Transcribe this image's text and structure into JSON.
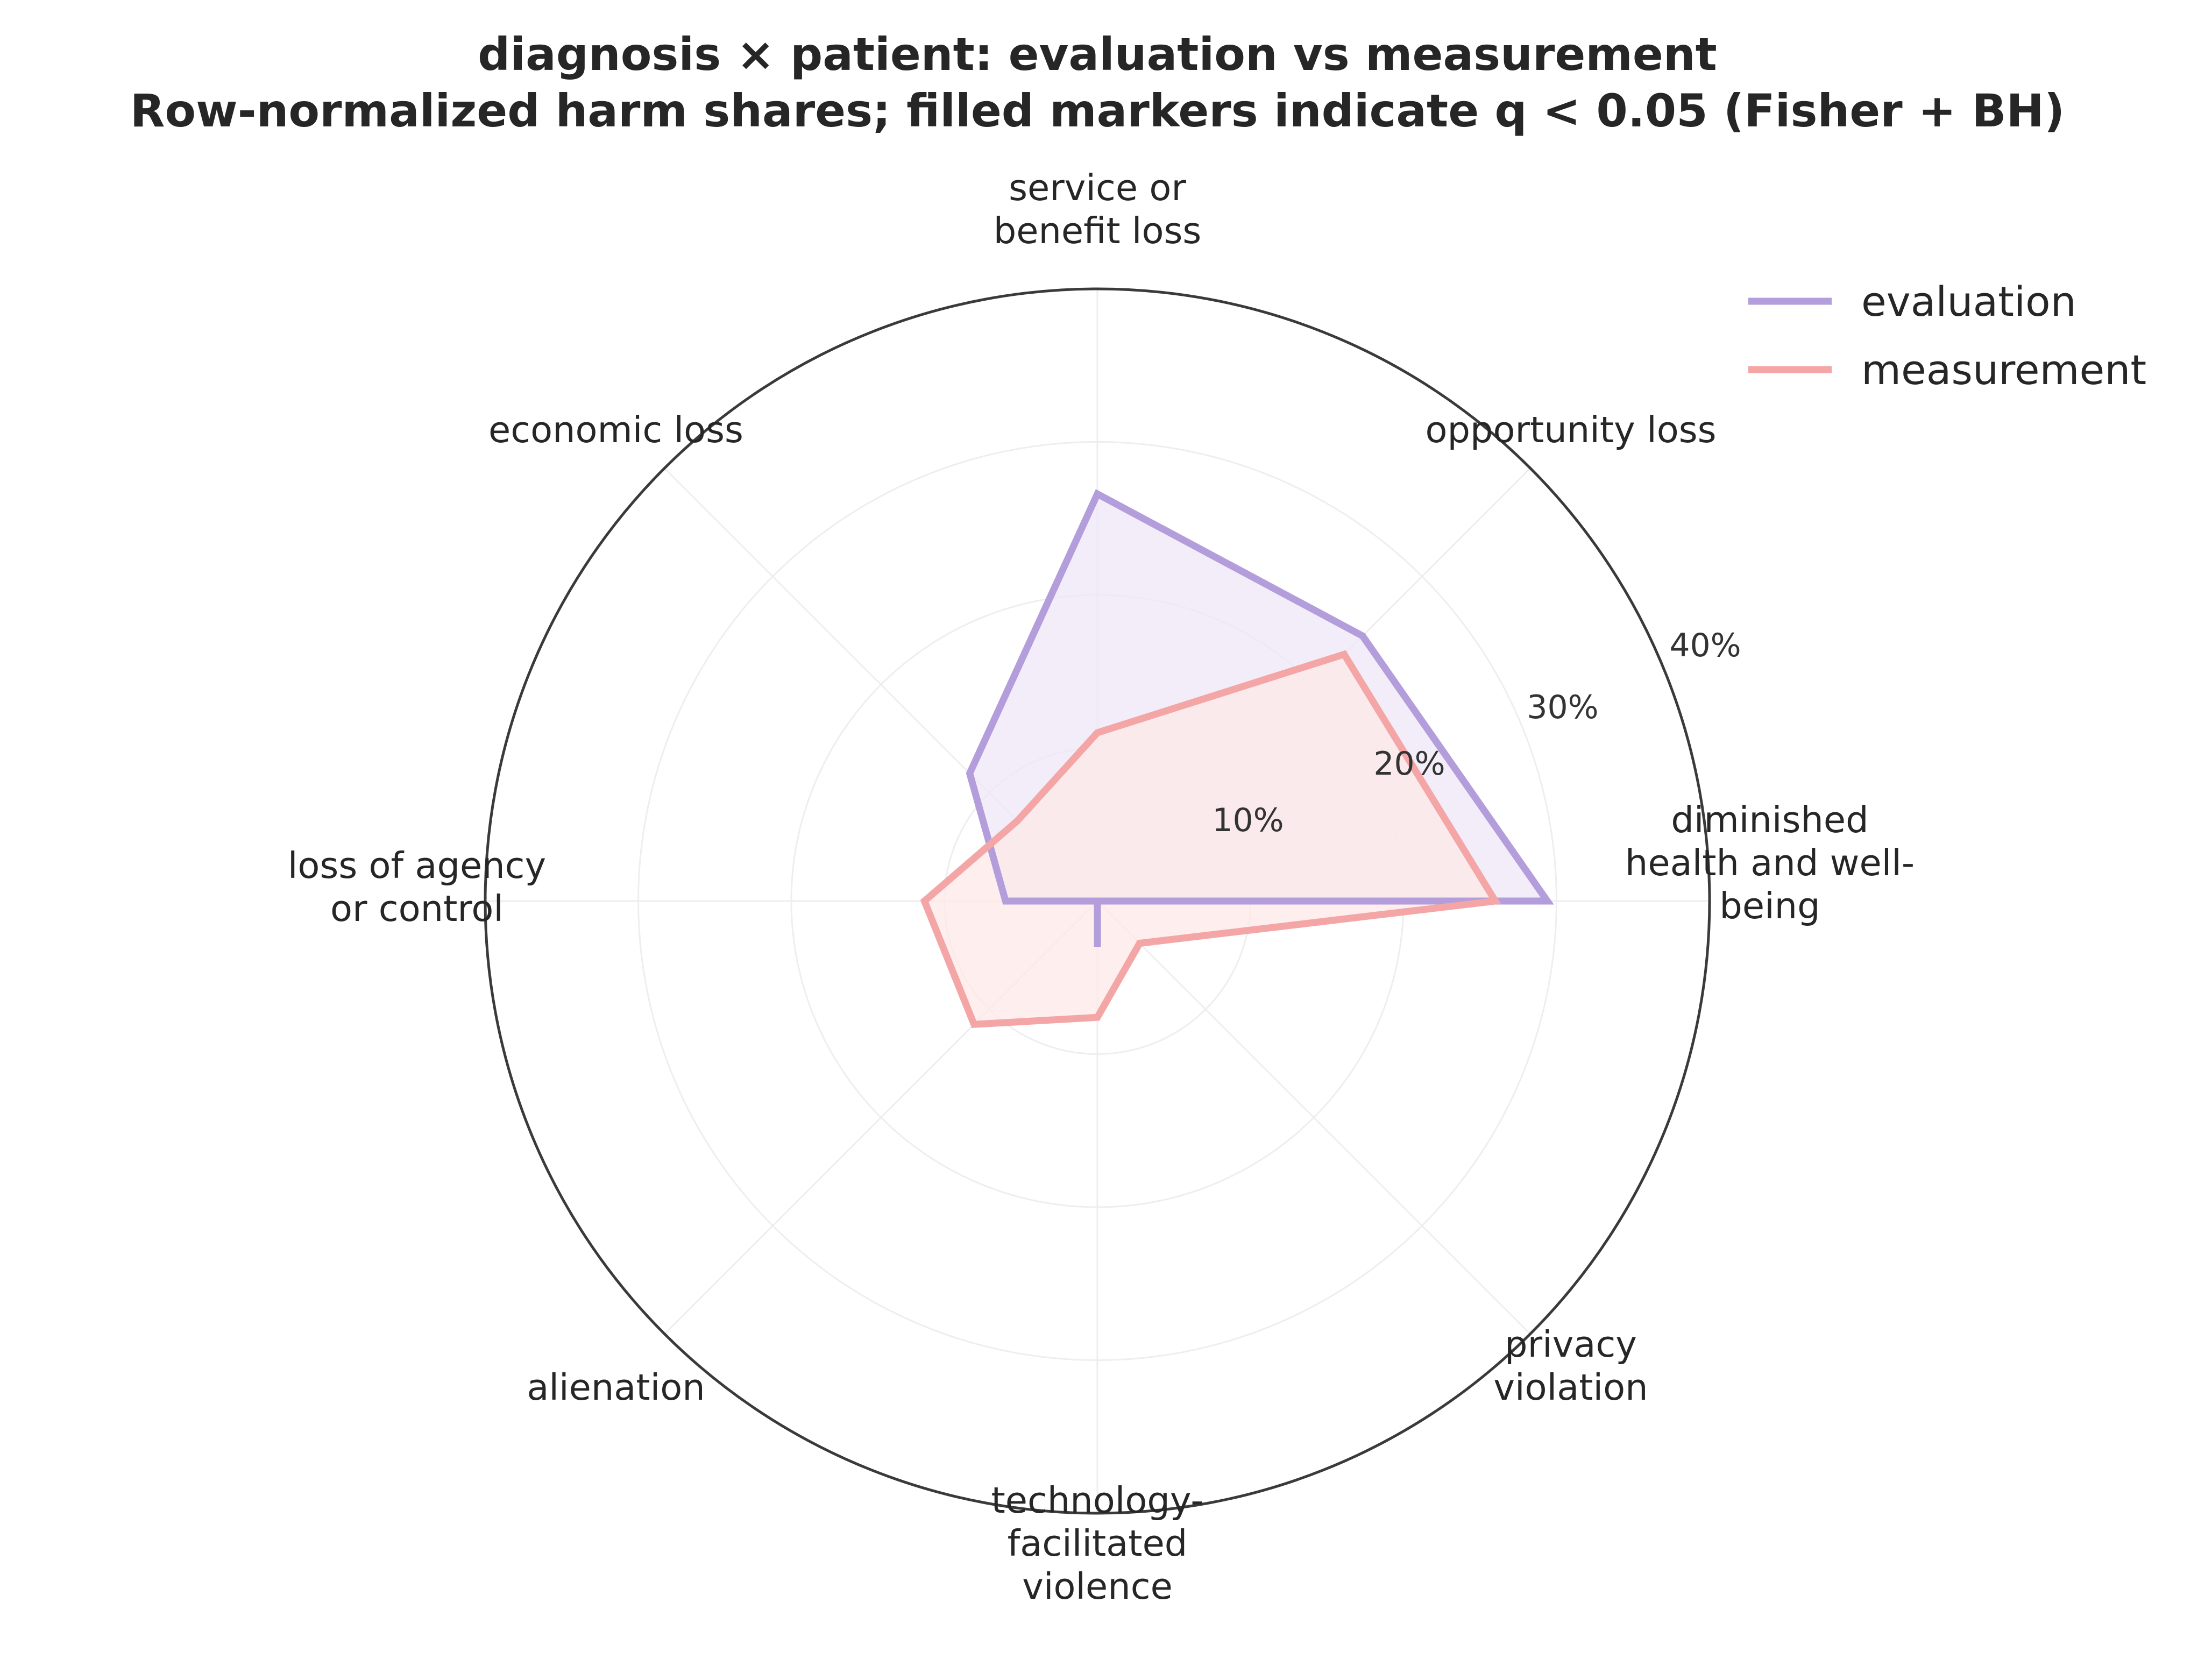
{
  "chart_data": {
    "type": "radar",
    "title": [
      "diagnosis × patient: evaluation vs measurement",
      "Row-normalized harm shares; filled markers indicate q < 0.05 (Fisher + BH)"
    ],
    "categories": [
      [
        "diminished",
        "health and well-",
        "being"
      ],
      [
        "opportunity loss"
      ],
      [
        "service or",
        "benefit loss"
      ],
      [
        "economic loss"
      ],
      [
        "loss of agency",
        "or control"
      ],
      [
        "alienation"
      ],
      [
        "technology-",
        "facilitated",
        "violence"
      ],
      [
        "privacy",
        "violation"
      ]
    ],
    "rlim": [
      0,
      40
    ],
    "rticks": [
      10,
      20,
      30,
      40
    ],
    "rtick_labels": [
      "10%",
      "20%",
      "30%",
      "40%"
    ],
    "series": [
      {
        "name": "evaluation",
        "color": "#b39ddb",
        "fill": "#ede7f6",
        "values": [
          29.4,
          24.5,
          26.6,
          11.8,
          6.0,
          0,
          3.0,
          0
        ]
      },
      {
        "name": "measurement",
        "color": "#f4a6a6",
        "fill": "#fde8e8",
        "values": [
          26.0,
          22.8,
          11.0,
          7.4,
          11.3,
          11.4,
          7.6,
          3.9
        ]
      }
    ],
    "legend": {
      "position": "top-right"
    },
    "grid": true
  }
}
